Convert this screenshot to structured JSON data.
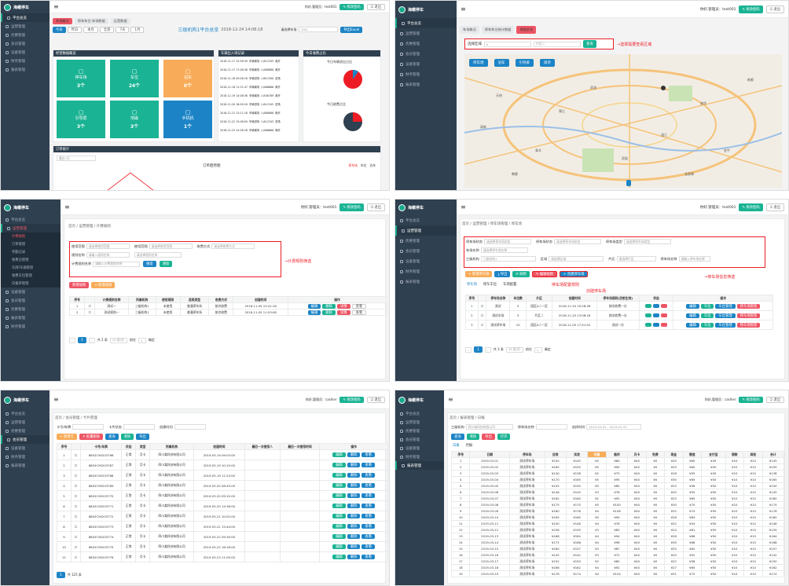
{
  "brand": {
    "name": "海螺停车",
    "sub": "HelloParking"
  },
  "top": {
    "user": "你好,管理员：test001",
    "change_pwd": "✎ 修改密码",
    "logout": "⎋ 退出"
  },
  "top_alt": {
    "user": "你好,管理员：cashier",
    "change_pwd": "✎ 修改密码",
    "logout": "⎋ 退出"
  },
  "nav": [
    "平台总览",
    "运营管理",
    "优惠管理",
    "会员管理",
    "设备管理",
    "财务管理",
    "报表管理"
  ],
  "nav_p3_subs": [
    "计费规则",
    "订单管理",
    "考勤记录",
    "收费员管理",
    "车牌/车辆管理",
    "收费车位管理",
    "日报单管理"
  ],
  "nav_p3_after": [
    "设备管理",
    "会员管理",
    "优惠管理",
    "报表管理",
    "财务管理"
  ],
  "dash": {
    "tabs": [
      "车场概况",
      "停车车位-车场数据",
      "运营数据"
    ],
    "filters": [
      "今日",
      "昨日",
      "本月",
      "全部",
      "7天",
      "1月"
    ],
    "title": "三级机构1平台总览",
    "datetime": "2018-12-24 14:08:18",
    "sel_label": "请选择车场",
    "sel_value": "XXX",
    "export": "导出Excel",
    "panel_titles": [
      "经营数据概览",
      "车辆出入场记录",
      "今日收费占比"
    ],
    "stats": [
      {
        "name": "停车场",
        "value": "3个"
      },
      {
        "name": "车位",
        "value": "24个"
      },
      {
        "name": "泊车",
        "value": "0个"
      },
      {
        "name": "引导屏",
        "value": "3个"
      },
      {
        "name": "地磁",
        "value": "3个"
      },
      {
        "name": "手机机",
        "value": "1个"
      }
    ],
    "log": [
      [
        "2018-12-17 15:58:49",
        "车辆离场",
        "川A12345",
        "离开"
      ],
      [
        "2018-12-17 17:08:36",
        "车辆离场",
        "川A88888",
        "离开"
      ],
      [
        "2018-12-18 09:08:18",
        "车辆进场",
        "川B12300",
        "进场"
      ],
      [
        "2018-12-18 11:31:47",
        "车辆离场",
        "川A66666",
        "离开"
      ],
      [
        "2018-12-19 14:08:36",
        "车辆离场",
        "川A56789",
        "离开"
      ],
      [
        "2018-12-20 16:09:18",
        "车辆进场",
        "川A12345",
        "进场"
      ],
      [
        "2018-12-21 13:11:18",
        "车辆离场",
        "川A88888",
        "离开"
      ],
      [
        "2018-12-22 15:08:09",
        "车辆进场",
        "川A12345",
        "进场"
      ],
      [
        "2018-12-23 14:58:18",
        "车辆离场",
        "川A66666",
        "离开"
      ]
    ],
    "pie_titles": [
      "今日车辆进出占比",
      "今日收费占比"
    ],
    "chart_box": "订单统计",
    "chart_title": "订单趋势图",
    "chart_select": "最近7天",
    "legend": [
      "停车场",
      "车位",
      "泊车"
    ]
  },
  "mappage": {
    "tabs": [
      "车场概况",
      "停车车位统计数据",
      "地图总览"
    ],
    "area_label": "选择区域",
    "area_value": "片区二",
    "search": "查询",
    "annotation": "→选择需要查看区域",
    "btns": [
      "停车场",
      "泊车",
      "引导屏",
      "岗亭"
    ],
    "cities": [
      "天府",
      "锦江",
      "成华",
      "武侯",
      "青羊",
      "金牛",
      "温江",
      "双流",
      "郫都",
      "新都",
      "龙泉驿",
      "高新"
    ]
  },
  "rules": {
    "crumb": "首页 / 运营管理 / 计费规则",
    "f1": "使用范围",
    "f1v": "请选择使用范围",
    "f2": "使用范围",
    "f2v": "请选择使用范围",
    "f3": "收费方式",
    "f3v": "请选择收费方式",
    "f4": "规则名称",
    "f4v": "请输入规则名称",
    "f5": "请选择规则名称",
    "f6": "计费规则名称",
    "f6v": "请输入计费规则名称",
    "search": "搜索",
    "reset": "清除",
    "ann": "→计费规则筛选",
    "add": "新增规则",
    "create": "+ 新增规则",
    "cols": [
      "序号",
      "",
      "计费规则名称",
      "所属机构",
      "使用规则",
      "适用类型",
      "收费方式",
      "创建时间",
      "操作"
    ],
    "rows": [
      [
        "1",
        "",
        "测试一",
        "三级机构1",
        "未使用",
        "普通停车场",
        "按次收费",
        "2018-11-05 15:41:18"
      ],
      [
        "2",
        "",
        "测试规则一",
        "三级机构1",
        "未使用",
        "普通停车场",
        "按次收费",
        "2018-11-05 11:53:08"
      ]
    ],
    "ops": [
      "编辑",
      "删除",
      "详情",
      "查看"
    ],
    "pager": "共 2 条",
    "per": "10 条/页",
    "goto": "前往",
    "page": "1",
    "confirm": "确定"
  },
  "lots": {
    "crumb": "首页 / 运营管理 / 停车场管理 / 停车场",
    "f1": "停车场状态",
    "f1v": "请选择停车场状态",
    "f2": "停车场状态",
    "f2v": "请选择停车场状态",
    "f3": "停车场类型",
    "f3v": "请选择停车场类型",
    "f4": "车场名称",
    "f4v": "请选择停车场名称",
    "f5": "三级机构",
    "f5v": "三级机构1",
    "f6": "区域",
    "f6v": "请选择区域",
    "f7": "片区",
    "f7v": "请选择片区",
    "f8": "停车场名称",
    "f8v": "请输入停车场名称",
    "btns": [
      "+ 新增停车场",
      "⤓ 导出",
      "⟳ 刷新",
      "✎ 编辑规则",
      "+ 创建停车场"
    ],
    "ann1": "→停车场信息筛选",
    "ann2": "停车场配置规则",
    "ann3": "创建停车场",
    "tabs": [
      "停车场",
      "停车车位",
      "车场配置"
    ],
    "cols": [
      "序号",
      "",
      "停车场名称",
      "车位数",
      "片区",
      "创建时间",
      "停车场规则(目前生效)",
      "状态",
      "操作"
    ],
    "rows": [
      [
        "1",
        "",
        "测试",
        "5",
        "园区A二一区",
        "2018-11-20 19:28:28",
        "按次收费一分"
      ],
      [
        "2",
        "",
        "测试车场",
        "5",
        "片区二",
        "2018-11-20 13:08:18",
        "按次收费一分"
      ],
      [
        "3",
        "",
        "测试停车场",
        "10",
        "园区A二一区",
        "2018-11-05 17:41:02",
        "测试一分"
      ]
    ],
    "ops": [
      "编辑",
      "车位",
      "车位管理",
      "停车场管理"
    ],
    "pager": "共 3 条",
    "per": "10 条/页",
    "goto": "前往",
    "page": "1",
    "confirm": "确定"
  },
  "p5": {
    "crumb": "首页 / 会员管理 / 卡片管理",
    "subnav": [
      "卡片管理",
      "卡片类型",
      "卡片冲值管理"
    ],
    "f1": "卡号/车牌",
    "f2": "卡片状态",
    "f3": "创建时间",
    "btns": [
      "+ 新增卡",
      "✕ 批量删除",
      "查询",
      "清除",
      "导出"
    ],
    "cols": [
      "序号",
      "",
      "卡号/车牌",
      "状态",
      "类型",
      "所属机构",
      "创建时间",
      "最后一次使用人",
      "最后一次使用时间",
      "操作"
    ],
    "rows": [
      [
        "1",
        "6802C90203766",
        "正常",
        "月卡",
        "四川某科技有限公司",
        "2019-03-19 09:03:00"
      ],
      [
        "2",
        "6802C90203767",
        "正常",
        "月卡",
        "四川某科技有限公司",
        "2019-03-19 10:15:00"
      ],
      [
        "3",
        "6802C90203768",
        "正常",
        "月卡",
        "四川某科技有限公司",
        "2019-03-19 11:23:00"
      ],
      [
        "4",
        "6802C90203769",
        "正常",
        "月卡",
        "四川某科技有限公司",
        "2019-03-20 08:45:00"
      ],
      [
        "5",
        "6802C90203770",
        "正常",
        "月卡",
        "四川某科技有限公司",
        "2019-03-20 09:12:00"
      ],
      [
        "6",
        "6802C90203771",
        "正常",
        "月卡",
        "四川某科技有限公司",
        "2019-03-20 14:36:00"
      ],
      [
        "7",
        "6802C90203772",
        "正常",
        "月卡",
        "四川某科技有限公司",
        "2019-03-21 10:02:00"
      ],
      [
        "8",
        "6802C90203773",
        "正常",
        "月卡",
        "四川某科技有限公司",
        "2019-03-21 15:44:00"
      ],
      [
        "9",
        "6802C90203774",
        "正常",
        "月卡",
        "四川某科技有限公司",
        "2019-03-22 09:30:00"
      ],
      [
        "10",
        "6802C90203775",
        "正常",
        "月卡",
        "四川某科技有限公司",
        "2019-03-22 16:18:00"
      ],
      [
        "11",
        "6802C90203776",
        "正常",
        "月卡",
        "四川某科技有限公司",
        "2019-03-23 11:05:00"
      ]
    ],
    "ops": [
      "编辑",
      "删除",
      "查看"
    ],
    "pager": "共 125 条"
  },
  "p6": {
    "crumb": "首页 / 报表管理 / 日报",
    "f1": "三级机构",
    "f2": "四川某科技有限公司",
    "f3": "停车场名称",
    "f4": "选择时间",
    "f4v": "2019-03-01 - 2019-03-31",
    "btns": [
      "查询",
      "清除",
      "导出",
      "打印"
    ],
    "subnav": [
      "日报",
      "月报"
    ],
    "cols": [
      "序号",
      "日期",
      "停车场",
      "应收",
      "实收",
      "优惠",
      "临时",
      "月卡",
      "免费",
      "现金",
      "微信",
      "支付宝",
      "银联",
      "其他",
      "合计"
    ],
    "rows": [
      [
        "1",
        "2019-03-01",
        "测试停车场",
        "¥150",
        "¥145",
        "¥5",
        "¥80",
        "¥40",
        "¥0",
        "¥20",
        "¥60",
        "¥45",
        "¥10",
        "¥10",
        "¥145"
      ],
      [
        "2",
        "2019-03-02",
        "测试停车场",
        "¥160",
        "¥155",
        "¥5",
        "¥90",
        "¥40",
        "¥0",
        "¥25",
        "¥60",
        "¥50",
        "¥10",
        "¥10",
        "¥155"
      ],
      [
        "3",
        "2019-03-03",
        "测试停车场",
        "¥140",
        "¥138",
        "¥2",
        "¥70",
        "¥40",
        "¥0",
        "¥18",
        "¥55",
        "¥45",
        "¥10",
        "¥10",
        "¥138"
      ],
      [
        "4",
        "2019-03-04",
        "测试停车场",
        "¥170",
        "¥165",
        "¥5",
        "¥95",
        "¥40",
        "¥0",
        "¥30",
        "¥65",
        "¥50",
        "¥10",
        "¥10",
        "¥165"
      ],
      [
        "5",
        "2019-03-05",
        "测试停车场",
        "¥155",
        "¥150",
        "¥5",
        "¥85",
        "¥40",
        "¥0",
        "¥22",
        "¥58",
        "¥50",
        "¥10",
        "¥10",
        "¥150"
      ],
      [
        "6",
        "2019-03-06",
        "测试停车场",
        "¥148",
        "¥145",
        "¥3",
        "¥78",
        "¥40",
        "¥0",
        "¥20",
        "¥55",
        "¥50",
        "¥10",
        "¥10",
        "¥145"
      ],
      [
        "7",
        "2019-03-07",
        "测试停车场",
        "¥162",
        "¥160",
        "¥2",
        "¥92",
        "¥40",
        "¥0",
        "¥25",
        "¥65",
        "¥50",
        "¥10",
        "¥10",
        "¥160"
      ],
      [
        "8",
        "2019-03-08",
        "测试停车场",
        "¥175",
        "¥170",
        "¥5",
        "¥100",
        "¥40",
        "¥0",
        "¥30",
        "¥70",
        "¥50",
        "¥10",
        "¥10",
        "¥170"
      ],
      [
        "9",
        "2019-03-09",
        "测试停车场",
        "¥180",
        "¥176",
        "¥4",
        "¥106",
        "¥40",
        "¥0",
        "¥32",
        "¥74",
        "¥50",
        "¥10",
        "¥10",
        "¥176"
      ],
      [
        "10",
        "2019-03-10",
        "测试停车场",
        "¥165",
        "¥160",
        "¥5",
        "¥90",
        "¥40",
        "¥0",
        "¥26",
        "¥64",
        "¥50",
        "¥10",
        "¥10",
        "¥160"
      ],
      [
        "11",
        "2019-03-11",
        "测试停车场",
        "¥150",
        "¥146",
        "¥4",
        "¥76",
        "¥40",
        "¥0",
        "¥22",
        "¥54",
        "¥50",
        "¥10",
        "¥10",
        "¥146"
      ],
      [
        "12",
        "2019-03-12",
        "测试停车场",
        "¥158",
        "¥155",
        "¥3",
        "¥85",
        "¥40",
        "¥0",
        "¥24",
        "¥61",
        "¥50",
        "¥10",
        "¥10",
        "¥155"
      ],
      [
        "13",
        "2019-03-13",
        "测试停车场",
        "¥168",
        "¥164",
        "¥4",
        "¥94",
        "¥40",
        "¥0",
        "¥28",
        "¥66",
        "¥50",
        "¥10",
        "¥10",
        "¥164"
      ],
      [
        "14",
        "2019-03-14",
        "测试停车场",
        "¥172",
        "¥168",
        "¥4",
        "¥98",
        "¥40",
        "¥0",
        "¥30",
        "¥68",
        "¥50",
        "¥10",
        "¥10",
        "¥168"
      ],
      [
        "15",
        "2019-03-15",
        "测试停车场",
        "¥160",
        "¥157",
        "¥3",
        "¥87",
        "¥40",
        "¥0",
        "¥25",
        "¥62",
        "¥50",
        "¥10",
        "¥10",
        "¥157"
      ],
      [
        "16",
        "2019-03-16",
        "测试停车场",
        "¥145",
        "¥142",
        "¥3",
        "¥72",
        "¥40",
        "¥0",
        "¥20",
        "¥52",
        "¥50",
        "¥10",
        "¥10",
        "¥142"
      ],
      [
        "17",
        "2019-03-17",
        "测试停车场",
        "¥152",
        "¥150",
        "¥2",
        "¥80",
        "¥40",
        "¥0",
        "¥22",
        "¥58",
        "¥50",
        "¥10",
        "¥10",
        "¥150"
      ],
      [
        "18",
        "2019-03-18",
        "测试停车场",
        "¥166",
        "¥162",
        "¥4",
        "¥92",
        "¥40",
        "¥0",
        "¥27",
        "¥65",
        "¥50",
        "¥10",
        "¥10",
        "¥162"
      ],
      [
        "19",
        "2019-03-19",
        "测试停车场",
        "¥178",
        "¥174",
        "¥4",
        "¥104",
        "¥40",
        "¥0",
        "¥31",
        "¥73",
        "¥50",
        "¥10",
        "¥10",
        "¥174"
      ]
    ]
  }
}
